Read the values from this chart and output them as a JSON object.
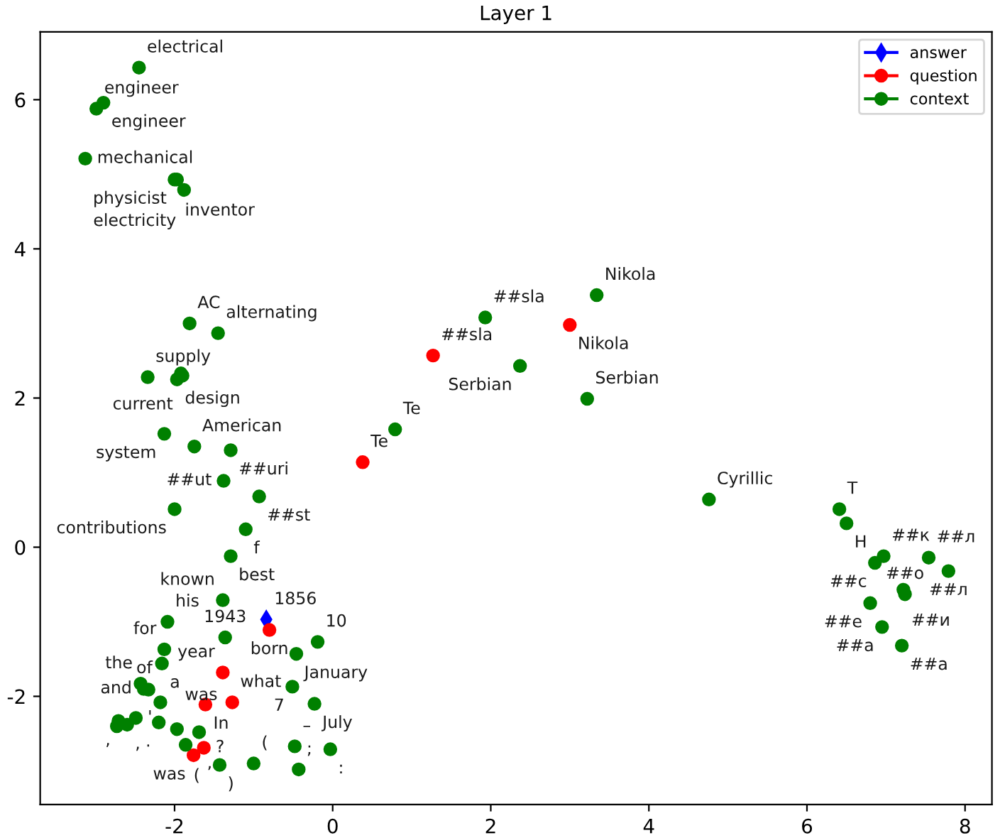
{
  "chart_data": {
    "type": "scatter",
    "title": "Layer 1",
    "xlim": [
      -3.7,
      8.34
    ],
    "ylim": [
      -3.45,
      6.91
    ],
    "xticks": [
      -2,
      0,
      2,
      4,
      6,
      8
    ],
    "yticks": [
      -2,
      0,
      2,
      4,
      6
    ],
    "grid": false,
    "legend": "top right",
    "series": [
      {
        "name": "answer",
        "color": "#0000ff",
        "marker": "diamond",
        "x": [
          -0.84
        ],
        "values": [
          -0.97
        ]
      },
      {
        "name": "question",
        "color": "#ff0000",
        "marker": "circle",
        "x": [
          3.0,
          1.27,
          0.38,
          -0.8,
          -1.39,
          -1.61,
          -1.27,
          -1.63,
          -1.76
        ],
        "values": [
          2.98,
          2.57,
          1.14,
          -1.11,
          -1.68,
          -2.11,
          -2.08,
          -2.69,
          -2.79
        ]
      },
      {
        "name": "context",
        "color": "#008000",
        "marker": "circle",
        "x": [
          -2.45,
          -2.99,
          -2.9,
          -3.13,
          -2.0,
          -1.97,
          -1.88,
          -1.81,
          -1.45,
          -2.34,
          -1.97,
          -1.92,
          -1.9,
          -2.13,
          -1.75,
          -1.29,
          -1.38,
          -0.93,
          -2.0,
          -1.1,
          -1.29,
          -1.39,
          -2.09,
          -1.36,
          -2.13,
          -2.16,
          -0.19,
          -0.46,
          -0.51,
          -0.23,
          -2.43,
          -2.39,
          -2.33,
          -2.18,
          -2.2,
          -2.71,
          -2.6,
          -2.49,
          -2.73,
          -1.97,
          -1.69,
          -1.86,
          -1.43,
          -1.0,
          -0.48,
          -0.03,
          -0.43,
          2.37,
          3.22,
          3.34,
          1.93,
          0.79,
          4.76,
          6.41,
          6.5,
          6.86,
          6.97,
          7.54,
          7.79,
          7.22,
          7.24,
          6.8,
          6.95,
          7.2
        ],
        "values": [
          6.43,
          5.88,
          5.96,
          5.21,
          4.93,
          4.93,
          4.79,
          3.0,
          2.87,
          2.28,
          2.25,
          2.33,
          2.3,
          1.52,
          1.35,
          1.3,
          0.89,
          0.68,
          0.51,
          0.24,
          -0.12,
          -0.71,
          -1.0,
          -1.21,
          -1.37,
          -1.56,
          -1.27,
          -1.43,
          -1.87,
          -2.1,
          -1.83,
          -1.9,
          -1.91,
          -2.08,
          -2.35,
          -2.33,
          -2.38,
          -2.29,
          -2.4,
          -2.44,
          -2.48,
          -2.65,
          -2.92,
          -2.9,
          -2.67,
          -2.71,
          -2.98,
          2.43,
          1.99,
          3.38,
          3.08,
          1.58,
          0.64,
          0.51,
          0.32,
          -0.21,
          -0.12,
          -0.14,
          -0.32,
          -0.57,
          -0.63,
          -0.75,
          -1.07,
          -1.32
        ]
      }
    ],
    "annotations": [
      {
        "text": "1856",
        "x": -0.84,
        "y": -0.97
      },
      {
        "text": "Nikola",
        "x": 3.0,
        "y": 2.98
      },
      {
        "text": "##sla",
        "x": 1.27,
        "y": 2.57
      },
      {
        "text": "Te",
        "x": 0.38,
        "y": 1.14
      },
      {
        "text": "born",
        "x": -0.8,
        "y": -1.11
      },
      {
        "text": "year",
        "x": -1.39,
        "y": -1.68
      },
      {
        "text": "In",
        "x": -1.61,
        "y": -2.11
      },
      {
        "text": "what",
        "x": -1.27,
        "y": -2.08
      },
      {
        "text": "?",
        "x": -1.63,
        "y": -2.69
      },
      {
        "text": "was",
        "x": -1.76,
        "y": -2.79
      },
      {
        "text": "electrical",
        "x": -2.45,
        "y": 6.43
      },
      {
        "text": "engineer",
        "x": -2.99,
        "y": 5.88
      },
      {
        "text": "engineer",
        "x": -2.9,
        "y": 5.96
      },
      {
        "text": "mechanical",
        "x": -3.13,
        "y": 5.21
      },
      {
        "text": "physicist",
        "x": -2.0,
        "y": 4.93
      },
      {
        "text": "inventor",
        "x": -1.97,
        "y": 4.93
      },
      {
        "text": "electricity",
        "x": -1.88,
        "y": 4.79
      },
      {
        "text": "AC",
        "x": -1.81,
        "y": 3.0
      },
      {
        "text": "alternating",
        "x": -1.45,
        "y": 2.87
      },
      {
        "text": "supply",
        "x": -2.34,
        "y": 2.28
      },
      {
        "text": "design",
        "x": -1.97,
        "y": 2.25
      },
      {
        "text": "current",
        "x": -1.92,
        "y": 2.33
      },
      {
        "text": "system",
        "x": -2.13,
        "y": 1.52
      },
      {
        "text": "American",
        "x": -1.75,
        "y": 1.35
      },
      {
        "text": "##uri",
        "x": -1.29,
        "y": 1.3
      },
      {
        "text": "##ut",
        "x": -1.38,
        "y": 0.89
      },
      {
        "text": "##st",
        "x": -0.93,
        "y": 0.68
      },
      {
        "text": "contributions",
        "x": -2.0,
        "y": 0.51
      },
      {
        "text": "f",
        "x": -1.1,
        "y": 0.24
      },
      {
        "text": "best",
        "x": -1.29,
        "y": -0.12
      },
      {
        "text": "known",
        "x": -1.39,
        "y": -0.71
      },
      {
        "text": "his",
        "x": -2.09,
        "y": -1.0
      },
      {
        "text": "1943",
        "x": -1.36,
        "y": -1.21
      },
      {
        "text": "for",
        "x": -2.13,
        "y": -1.37
      },
      {
        "text": "a",
        "x": -2.16,
        "y": -1.56
      },
      {
        "text": "10",
        "x": -0.19,
        "y": -1.27
      },
      {
        "text": "January",
        "x": -0.46,
        "y": -1.43
      },
      {
        "text": "7",
        "x": -0.51,
        "y": -1.87
      },
      {
        "text": "July",
        "x": -0.23,
        "y": -2.1
      },
      {
        "text": "the",
        "x": -2.43,
        "y": -1.83
      },
      {
        "text": "and",
        "x": -2.39,
        "y": -1.9
      },
      {
        "text": "of",
        "x": -2.18,
        "y": -2.08
      },
      {
        "text": ".",
        "x": -2.2,
        "y": -2.35
      },
      {
        "text": ",",
        "x": -2.71,
        "y": -2.33
      },
      {
        "text": ",",
        "x": -2.6,
        "y": -2.38
      },
      {
        "text": "'",
        "x": -2.49,
        "y": -2.29
      },
      {
        "text": "was",
        "x": -1.97,
        "y": -2.44
      },
      {
        "text": ",",
        "x": -1.69,
        "y": -2.48
      },
      {
        "text": "(",
        "x": -1.86,
        "y": -2.65
      },
      {
        "text": ")",
        "x": -1.43,
        "y": -2.92
      },
      {
        "text": "(",
        "x": -1.0,
        "y": -2.9
      },
      {
        "text": "–",
        "x": -0.48,
        "y": -2.67
      },
      {
        "text": ":",
        "x": -0.03,
        "y": -2.71
      },
      {
        "text": ";",
        "x": -0.43,
        "y": -2.98
      },
      {
        "text": "Serbian",
        "x": 2.37,
        "y": 2.43
      },
      {
        "text": "Serbian",
        "x": 3.22,
        "y": 1.99
      },
      {
        "text": "Nikola",
        "x": 3.34,
        "y": 3.38
      },
      {
        "text": "##sla",
        "x": 1.93,
        "y": 3.08
      },
      {
        "text": "Te",
        "x": 0.79,
        "y": 1.58
      },
      {
        "text": "Cyrillic",
        "x": 4.76,
        "y": 0.64
      },
      {
        "text": "Т",
        "x": 6.41,
        "y": 0.51
      },
      {
        "text": "Н",
        "x": 6.5,
        "y": 0.32
      },
      {
        "text": "##с",
        "x": 6.86,
        "y": -0.21
      },
      {
        "text": "##к",
        "x": 6.97,
        "y": -0.12
      },
      {
        "text": "##л",
        "x": 7.54,
        "y": -0.14
      },
      {
        "text": "##л",
        "x": 7.79,
        "y": -0.32
      },
      {
        "text": "##и",
        "x": 7.22,
        "y": -0.57
      },
      {
        "text": "##о",
        "x": 7.24,
        "y": -0.63
      },
      {
        "text": "##е",
        "x": 6.8,
        "y": -0.75
      },
      {
        "text": "##а",
        "x": 6.95,
        "y": -1.07
      },
      {
        "text": "##а",
        "x": 7.2,
        "y": -1.32
      }
    ]
  }
}
